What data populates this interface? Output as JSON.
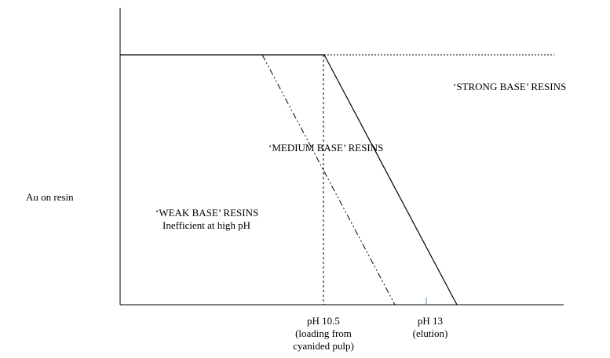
{
  "diagram": {
    "y_axis_label": "Au on resin",
    "regions": {
      "strong": "‘STRONG BASE’ RESINS",
      "medium": "‘MEDIUM BASE’ RESINS",
      "weak_title": "‘WEAK BASE’ RESINS",
      "weak_note": "Inefficient at high pH"
    },
    "x_markers": {
      "ph_10_5": "pH 10.5\n(loading from\ncyanided pulp)",
      "ph_13": "pH 13\n(elution)"
    },
    "colors": {
      "lines": "#000000",
      "tick": "#4a7fd1"
    }
  }
}
